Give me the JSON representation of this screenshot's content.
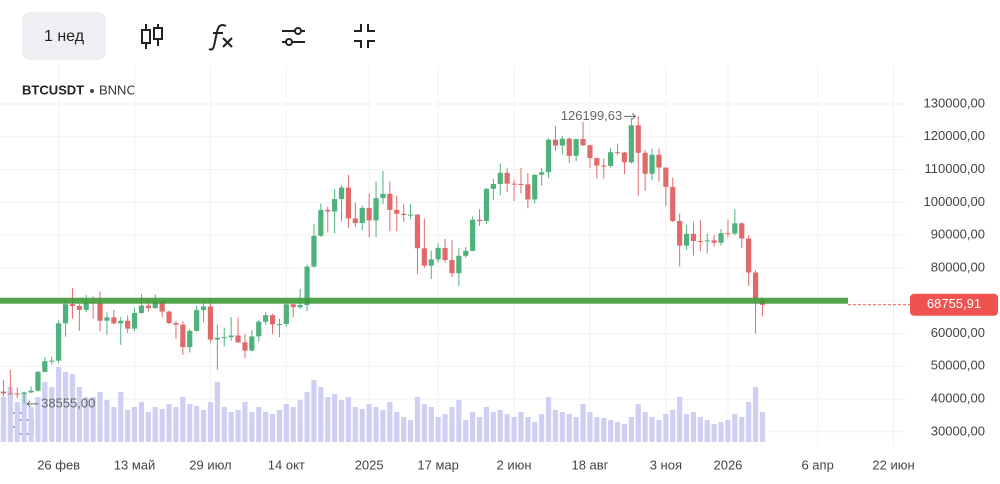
{
  "toolbar": {
    "interval": "1 нед"
  },
  "chart_data": {
    "type": "candlestick",
    "symbol": "BTCUSDT",
    "exchange": "BNNC",
    "up_color": "#4fb27d",
    "down_color": "#e06a6a",
    "volume_color": "#cdd0f3",
    "grid": true,
    "categories": [
      null,
      null,
      null,
      null,
      null,
      null,
      null,
      null,
      "26 фев",
      null,
      null,
      null,
      null,
      null,
      null,
      null,
      null,
      null,
      null,
      "13 май",
      null,
      null,
      null,
      null,
      null,
      null,
      null,
      null,
      null,
      null,
      "29 июл",
      null,
      null,
      null,
      null,
      null,
      null,
      null,
      null,
      null,
      null,
      "14 окт",
      null,
      null,
      null,
      null,
      null,
      null,
      null,
      null,
      null,
      null,
      null,
      "2025",
      null,
      null,
      null,
      null,
      null,
      null,
      null,
      null,
      null,
      "17 мар",
      null,
      null,
      null,
      null,
      null,
      null,
      null,
      null,
      null,
      null,
      "2 июн",
      null,
      null,
      null,
      null,
      null,
      null,
      null,
      null,
      null,
      null,
      "18 авг",
      null,
      null,
      null,
      null,
      null,
      null,
      null,
      null,
      null,
      null,
      "3 ноя",
      null,
      null,
      null,
      null,
      null,
      null,
      null,
      null,
      "2026",
      null,
      null,
      null,
      null,
      null,
      null,
      null,
      null,
      null,
      null,
      null,
      null,
      "6 апр",
      null,
      null,
      null,
      null,
      null,
      null,
      null,
      null,
      null,
      null,
      "22 июн",
      null,
      null
    ],
    "open": [
      42280,
      41730,
      41700,
      41580,
      42030,
      42580,
      48300,
      51580,
      51730,
      63110,
      68950,
      68390,
      67220,
      69640,
      69360,
      63900,
      64940,
      63100,
      63900,
      61480,
      66270,
      68510,
      67760,
      69650,
      66680,
      63200,
      62700,
      55850,
      60800,
      67140,
      68250,
      58150,
      58700,
      58900,
      59400,
      57300,
      54800,
      59130,
      63600,
      65600,
      62800,
      62900,
      68900,
      68000,
      68700,
      80400,
      89800,
      97700,
      97200,
      101000,
      104500,
      95100,
      93700,
      98300,
      94500,
      101300,
      102600,
      97700,
      96500,
      96150,
      96250,
      86000,
      80700,
      82600,
      86100,
      82400,
      78400,
      83700,
      85200,
      94700,
      94300,
      104100,
      105600,
      109000,
      105700,
      105600,
      105500,
      100900,
      108400,
      109200,
      119100,
      117300,
      119400,
      114200,
      119300,
      117400,
      113500,
      111200,
      111100,
      115300,
      115200,
      112200,
      123500,
      115100,
      108700,
      114500,
      110600,
      104700,
      94300,
      86800,
      90400,
      88200,
      88100,
      88400,
      87700,
      90600,
      90500,
      93600,
      89000,
      78600,
      70500,
      null,
      null,
      null,
      null,
      null,
      null,
      null,
      null,
      null,
      null,
      null,
      null,
      null,
      null,
      null,
      null,
      null,
      null,
      null,
      null,
      null
    ],
    "high": [
      45900,
      48970,
      43580,
      42260,
      43880,
      48590,
      52820,
      52980,
      64000,
      70170,
      73780,
      68920,
      71770,
      71350,
      72800,
      66500,
      67230,
      65000,
      65500,
      67700,
      71980,
      70600,
      71990,
      70200,
      66990,
      63800,
      63800,
      61400,
      68400,
      69400,
      70000,
      62700,
      61800,
      65000,
      64900,
      59800,
      61000,
      64100,
      66500,
      66000,
      64500,
      69500,
      69500,
      73600,
      81000,
      93500,
      99600,
      98700,
      104000,
      105200,
      108400,
      99900,
      99000,
      102700,
      106400,
      109600,
      106400,
      102000,
      99500,
      99500,
      96500,
      95000,
      85300,
      87500,
      88800,
      88500,
      86100,
      86400,
      95700,
      97900,
      104400,
      107100,
      111900,
      110400,
      106800,
      110500,
      108900,
      108500,
      110500,
      119500,
      123200,
      120200,
      119800,
      119400,
      124500,
      117600,
      113600,
      113400,
      116700,
      117900,
      115400,
      125700,
      126199.63,
      115900,
      116400,
      116400,
      110700,
      107500,
      96600,
      93100,
      94100,
      94600,
      90400,
      90000,
      91900,
      94800,
      97900,
      93900,
      90000,
      79300,
      71000,
      null,
      null,
      null,
      null,
      null,
      null,
      null,
      null,
      null,
      null,
      null,
      null,
      null,
      null,
      null,
      null,
      null,
      null,
      null,
      null,
      null
    ],
    "low": [
      40750,
      41500,
      40300,
      38555,
      41880,
      42250,
      48150,
      50520,
      50900,
      59000,
      64530,
      60770,
      66450,
      64500,
      60660,
      59600,
      62800,
      56550,
      60200,
      60750,
      66100,
      66600,
      67500,
      65050,
      62800,
      58400,
      53500,
      54200,
      60600,
      63400,
      57100,
      49000,
      56100,
      57800,
      57200,
      52500,
      54500,
      57500,
      62700,
      59800,
      58900,
      62100,
      65000,
      67500,
      66800,
      80200,
      89400,
      90800,
      90500,
      94200,
      92200,
      92500,
      91500,
      89300,
      89300,
      99500,
      91200,
      91200,
      94100,
      94800,
      78200,
      80000,
      76600,
      81600,
      81600,
      77100,
      74500,
      83100,
      85100,
      92800,
      93400,
      100700,
      102100,
      103100,
      100400,
      102700,
      98200,
      99700,
      105100,
      107500,
      115700,
      114700,
      112000,
      112600,
      117200,
      110500,
      107300,
      107200,
      110600,
      114400,
      108600,
      111800,
      102000,
      103500,
      106700,
      106300,
      98900,
      94000,
      80500,
      85500,
      83800,
      85100,
      84400,
      86500,
      86800,
      89300,
      89900,
      86000,
      74500,
      60000,
      65200,
      null,
      null,
      null,
      null,
      null,
      null,
      null,
      null,
      null,
      null,
      null,
      null,
      null,
      null,
      null,
      null,
      null,
      null,
      null,
      null,
      null
    ],
    "close": [
      41730,
      41700,
      41580,
      42030,
      42580,
      48300,
      51580,
      51730,
      63110,
      68950,
      68390,
      67220,
      69640,
      69360,
      63900,
      64940,
      63100,
      63900,
      61480,
      66270,
      68510,
      67760,
      69650,
      66680,
      63200,
      62700,
      55850,
      60800,
      67140,
      68250,
      58150,
      58700,
      58900,
      59400,
      57300,
      54800,
      59130,
      63600,
      65600,
      62800,
      62900,
      68900,
      68000,
      68700,
      80400,
      89800,
      97700,
      97200,
      101000,
      104500,
      95100,
      93700,
      98300,
      94500,
      101300,
      102600,
      97700,
      96500,
      96150,
      96250,
      86000,
      80700,
      82600,
      86100,
      82400,
      78400,
      83700,
      85200,
      94700,
      94300,
      104100,
      105600,
      109000,
      105700,
      105600,
      105500,
      100900,
      108400,
      109200,
      119100,
      117300,
      119400,
      114200,
      119300,
      117400,
      113500,
      111200,
      111100,
      115300,
      115200,
      112200,
      123500,
      115100,
      108700,
      114500,
      110600,
      104700,
      94300,
      86800,
      90400,
      88200,
      88100,
      88400,
      87700,
      90600,
      90500,
      93600,
      89000,
      78600,
      70500,
      68755.91,
      null,
      null,
      null,
      null,
      null,
      null,
      null,
      null,
      null,
      null,
      null,
      null,
      null,
      null,
      null,
      null,
      null,
      null,
      null,
      null,
      null
    ],
    "volume": [
      45,
      55,
      40,
      48,
      35,
      45,
      60,
      55,
      75,
      70,
      68,
      55,
      45,
      45,
      50,
      42,
      35,
      50,
      32,
      35,
      40,
      30,
      35,
      33,
      38,
      35,
      45,
      38,
      36,
      32,
      40,
      60,
      35,
      30,
      32,
      40,
      30,
      35,
      30,
      28,
      32,
      38,
      35,
      42,
      50,
      62,
      55,
      45,
      48,
      42,
      45,
      35,
      33,
      38,
      35,
      32,
      40,
      30,
      25,
      22,
      45,
      38,
      35,
      25,
      28,
      35,
      42,
      22,
      30,
      25,
      35,
      30,
      32,
      28,
      25,
      30,
      25,
      20,
      28,
      45,
      32,
      30,
      28,
      25,
      38,
      30,
      25,
      24,
      22,
      20,
      18,
      25,
      38,
      30,
      25,
      22,
      28,
      32,
      45,
      28,
      30,
      25,
      22,
      18,
      20,
      22,
      28,
      25,
      40,
      55,
      30,
      null,
      null,
      null,
      null,
      null,
      null,
      null,
      null,
      null,
      null,
      null,
      null,
      null,
      null,
      null,
      null,
      null,
      null,
      null,
      null,
      null
    ],
    "ylim": [
      26000,
      136700
    ],
    "yticks": [
      {
        "value": 30000,
        "label": "30000,00"
      },
      {
        "value": 40000,
        "label": "40000,00"
      },
      {
        "value": 50000,
        "label": "50000,00"
      },
      {
        "value": 60000,
        "label": "60000,00"
      },
      {
        "value": 70000,
        "label": "70000,00"
      },
      {
        "value": 80000,
        "label": "80000,00"
      },
      {
        "value": 90000,
        "label": "90000,00"
      },
      {
        "value": 100000,
        "label": "100000,00"
      },
      {
        "value": 110000,
        "label": "110000,00"
      },
      {
        "value": 120000,
        "label": "120000,00"
      },
      {
        "value": 130000,
        "label": "130000,00"
      }
    ],
    "high_annotation": {
      "value": 126199.63,
      "label": "126199,63"
    },
    "low_annotation": {
      "value": 38555,
      "label": "38555,00"
    },
    "last_price": {
      "value": 68755.91,
      "label": "68755,91",
      "color": "#ef5350"
    },
    "horizontal_line": {
      "value": 70000,
      "color": "#3f9a3a"
    }
  }
}
